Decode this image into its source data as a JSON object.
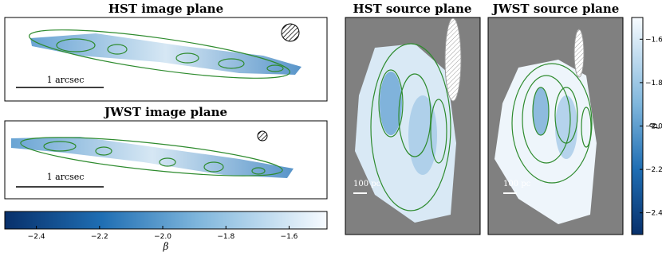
{
  "panels": [
    {
      "title": "HST image plane",
      "scale_label": "1 arcsec"
    },
    {
      "title": "JWST image plane",
      "scale_label": "1 arcsec"
    },
    {
      "title": "HST source plane",
      "scale_label": "100 pc"
    },
    {
      "title": "JWST source plane",
      "scale_label": "100 pc"
    }
  ],
  "colorbars": [
    {
      "orientation": "horizontal",
      "label": "β",
      "lim": [
        -2.5,
        -1.48
      ],
      "ticks": [
        {
          "value": -2.4,
          "label": "−2.4"
        },
        {
          "value": -2.2,
          "label": "−2.2"
        },
        {
          "value": -2.0,
          "label": "−2.0"
        },
        {
          "value": -1.8,
          "label": "−1.8"
        },
        {
          "value": -1.6,
          "label": "−1.6"
        }
      ]
    },
    {
      "orientation": "vertical",
      "label": "β",
      "lim": [
        -2.5,
        -1.5
      ],
      "ticks": [
        {
          "value": -2.4,
          "label": "−2.4"
        },
        {
          "value": -2.2,
          "label": "−2.2"
        },
        {
          "value": -2.0,
          "label": "−2.0"
        },
        {
          "value": -1.8,
          "label": "−1.8"
        },
        {
          "value": -1.6,
          "label": "−1.6"
        }
      ]
    }
  ]
}
